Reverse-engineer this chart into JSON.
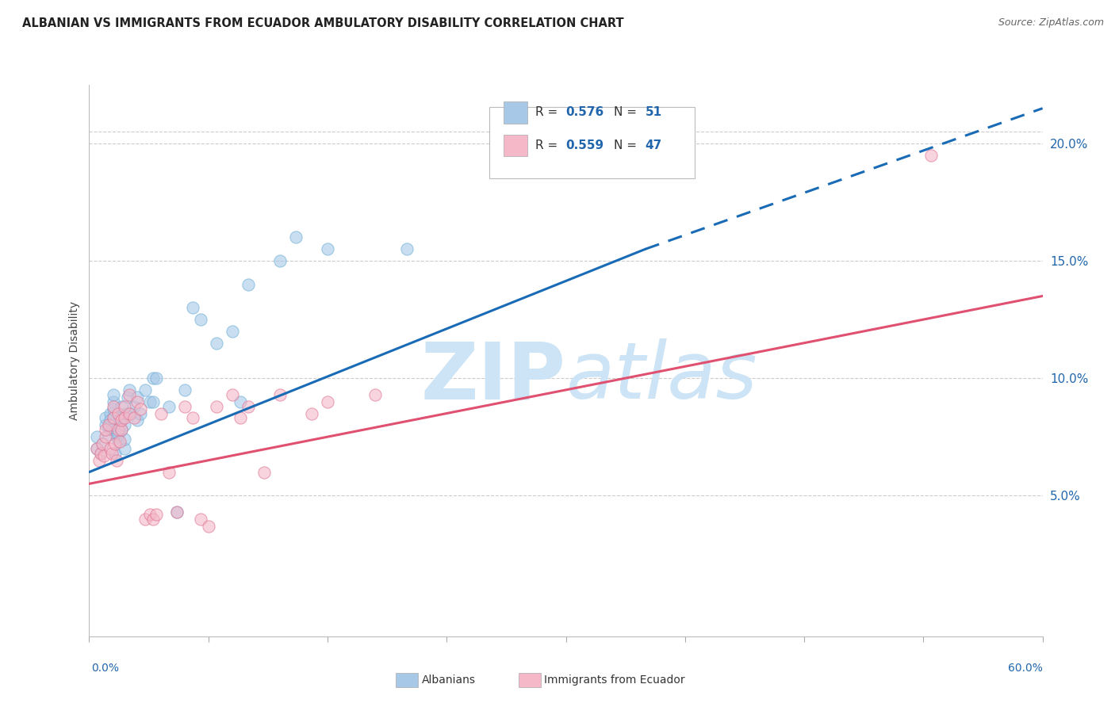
{
  "title": "ALBANIAN VS IMMIGRANTS FROM ECUADOR AMBULATORY DISABILITY CORRELATION CHART",
  "source": "Source: ZipAtlas.com",
  "ylabel": "Ambulatory Disability",
  "ytick_labels": [
    "5.0%",
    "10.0%",
    "15.0%",
    "20.0%"
  ],
  "ytick_values": [
    0.05,
    0.1,
    0.15,
    0.2
  ],
  "xlim": [
    0.0,
    0.6
  ],
  "ylim": [
    -0.01,
    0.225
  ],
  "legend_entries": [
    {
      "label_r": "R = 0.576",
      "label_n": "N = 51",
      "color": "#a8c8e8"
    },
    {
      "label_r": "R = 0.559",
      "label_n": "N = 47",
      "color": "#f4b8c8"
    }
  ],
  "albanian_scatter": {
    "x": [
      0.005,
      0.005,
      0.007,
      0.008,
      0.01,
      0.01,
      0.012,
      0.012,
      0.013,
      0.013,
      0.014,
      0.015,
      0.015,
      0.015,
      0.016,
      0.017,
      0.018,
      0.018,
      0.019,
      0.02,
      0.02,
      0.02,
      0.022,
      0.022,
      0.022,
      0.023,
      0.024,
      0.025,
      0.026,
      0.028,
      0.03,
      0.03,
      0.032,
      0.035,
      0.038,
      0.04,
      0.04,
      0.042,
      0.05,
      0.055,
      0.06,
      0.065,
      0.07,
      0.08,
      0.09,
      0.095,
      0.1,
      0.12,
      0.13,
      0.15,
      0.2
    ],
    "y": [
      0.075,
      0.07,
      0.068,
      0.072,
      0.08,
      0.083,
      0.076,
      0.079,
      0.085,
      0.082,
      0.078,
      0.09,
      0.093,
      0.087,
      0.068,
      0.075,
      0.073,
      0.076,
      0.082,
      0.078,
      0.083,
      0.088,
      0.07,
      0.074,
      0.08,
      0.085,
      0.092,
      0.095,
      0.085,
      0.088,
      0.082,
      0.092,
      0.085,
      0.095,
      0.09,
      0.1,
      0.09,
      0.1,
      0.088,
      0.043,
      0.095,
      0.13,
      0.125,
      0.115,
      0.12,
      0.09,
      0.14,
      0.15,
      0.16,
      0.155,
      0.155
    ],
    "color": "#a8c8e8",
    "edgecolor": "#6baed6",
    "alpha": 0.6,
    "size": 120
  },
  "ecuador_scatter": {
    "x": [
      0.005,
      0.006,
      0.007,
      0.008,
      0.009,
      0.01,
      0.01,
      0.012,
      0.013,
      0.014,
      0.015,
      0.015,
      0.016,
      0.017,
      0.018,
      0.018,
      0.019,
      0.02,
      0.02,
      0.022,
      0.022,
      0.025,
      0.025,
      0.028,
      0.03,
      0.032,
      0.035,
      0.038,
      0.04,
      0.042,
      0.045,
      0.05,
      0.055,
      0.06,
      0.065,
      0.07,
      0.075,
      0.08,
      0.09,
      0.095,
      0.1,
      0.11,
      0.12,
      0.14,
      0.15,
      0.18,
      0.53
    ],
    "y": [
      0.07,
      0.065,
      0.068,
      0.072,
      0.067,
      0.075,
      0.078,
      0.08,
      0.07,
      0.068,
      0.083,
      0.088,
      0.072,
      0.065,
      0.078,
      0.085,
      0.073,
      0.078,
      0.082,
      0.083,
      0.088,
      0.085,
      0.093,
      0.083,
      0.09,
      0.087,
      0.04,
      0.042,
      0.04,
      0.042,
      0.085,
      0.06,
      0.043,
      0.088,
      0.083,
      0.04,
      0.037,
      0.088,
      0.093,
      0.083,
      0.088,
      0.06,
      0.093,
      0.085,
      0.09,
      0.093,
      0.195
    ],
    "color": "#f4b8c8",
    "edgecolor": "#e07090",
    "alpha": 0.6,
    "size": 120
  },
  "albanian_trend": {
    "x_start": 0.0,
    "x_end": 0.6,
    "y_start": 0.06,
    "y_end": 0.215,
    "color": "#1a6bb5",
    "linewidth": 2.2,
    "dashed_x_start": 0.35,
    "dashed_x_end": 0.6,
    "dashed_y_start": 0.155,
    "dashed_y_end": 0.215
  },
  "ecuador_trend": {
    "x_start": 0.0,
    "x_end": 0.6,
    "y_start": 0.055,
    "y_end": 0.135,
    "color": "#e05070",
    "linewidth": 2.2
  },
  "background_color": "#ffffff",
  "grid_color": "#cccccc",
  "watermark_color": "#cce4f5"
}
